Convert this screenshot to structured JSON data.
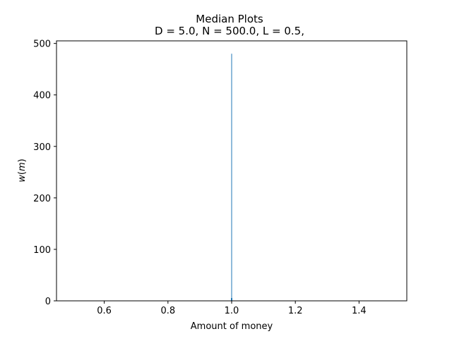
{
  "chart_data": {
    "type": "bar",
    "title": "Median Plots",
    "subtitle": "D = 5.0, N = 500.0, L = 0.5,",
    "xlabel": "Amount of money",
    "ylabel_var": "w",
    "ylabel_arg": "m",
    "xlim": [
      0.45,
      1.55
    ],
    "ylim": [
      0,
      505
    ],
    "xticks": [
      0.6,
      0.8,
      1.0,
      1.2,
      1.4
    ],
    "xtick_labels": [
      "0.6",
      "0.8",
      "1.0",
      "1.2",
      "1.4"
    ],
    "yticks": [
      0,
      100,
      200,
      300,
      400,
      500
    ],
    "ytick_labels": [
      "0",
      "100",
      "200",
      "300",
      "400",
      "500"
    ],
    "grid": false,
    "series": [
      {
        "name": "w(m)",
        "color": "#1f77b4",
        "points": [
          {
            "x": 1.0,
            "y": 480
          }
        ]
      }
    ]
  }
}
